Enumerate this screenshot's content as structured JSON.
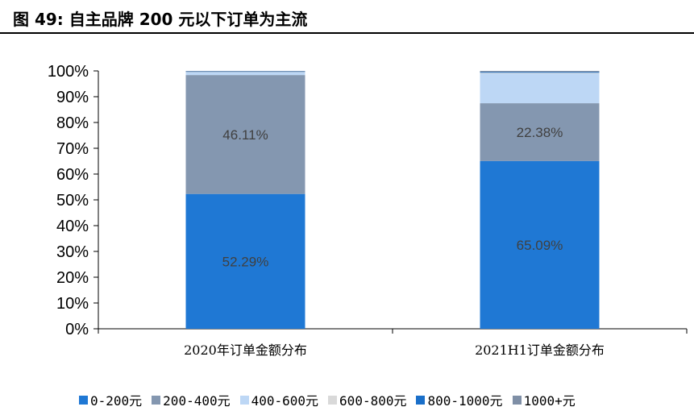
{
  "figure": {
    "title": "图 49:  自主品牌 200 元以下订单为主流"
  },
  "colors": {
    "c0_200": "#1f78d4",
    "c200_400": "#8497b0",
    "c400_600": "#bdd7f5",
    "c600_800": "#d9d9d9",
    "c800_1000": "#1a6fc9",
    "c1000p": "#7f8fa6"
  },
  "chart_data": {
    "type": "bar",
    "stacked": true,
    "categories": [
      "2020年订单金额分布",
      "2021H1订单金额分布"
    ],
    "y_ticks": [
      "0%",
      "10%",
      "20%",
      "30%",
      "40%",
      "50%",
      "60%",
      "70%",
      "80%",
      "90%",
      "100%"
    ],
    "ylim": [
      0,
      100
    ],
    "legend_position": "bottom",
    "series": [
      {
        "name": "0-200元",
        "values": [
          52.29,
          65.09
        ],
        "labels": [
          "52.29%",
          "65.09%"
        ],
        "color_key": "c0_200"
      },
      {
        "name": "200-400元",
        "values": [
          46.11,
          22.38
        ],
        "labels": [
          "46.11%",
          "22.38%"
        ],
        "color_key": "c200_400"
      },
      {
        "name": "400-600元",
        "values": [
          1.0,
          11.5
        ],
        "labels": [
          "",
          ""
        ],
        "color_key": "c400_600"
      },
      {
        "name": "600-800元",
        "values": [
          0.2,
          0.3
        ],
        "labels": [
          "",
          ""
        ],
        "color_key": "c600_800"
      },
      {
        "name": "800-1000元",
        "values": [
          0.2,
          0.3
        ],
        "labels": [
          "",
          ""
        ],
        "color_key": "c800_1000"
      },
      {
        "name": "1000+元",
        "values": [
          0.2,
          0.43
        ],
        "labels": [
          "",
          ""
        ],
        "color_key": "c1000p"
      }
    ]
  }
}
